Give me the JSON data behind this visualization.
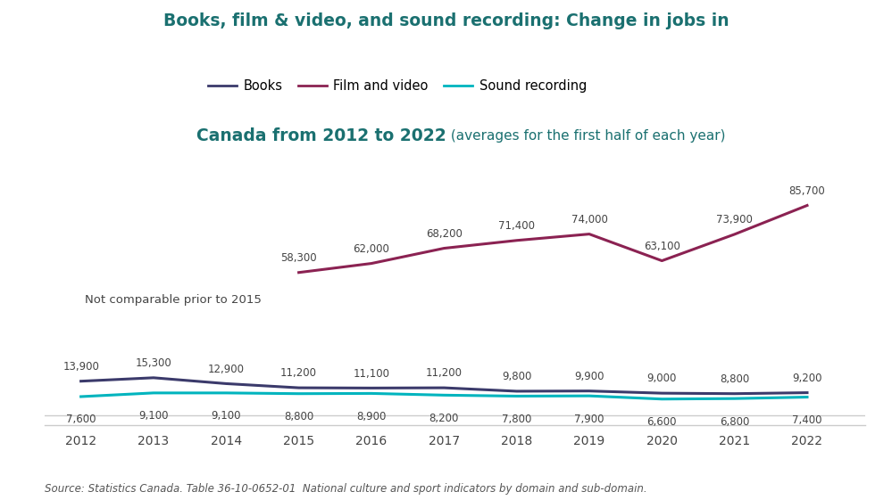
{
  "title_line1": "Books, film & video, and sound recording: Change in jobs in",
  "title_line2_bold": "Canada from 2012 to 2022",
  "title_line2_normal": " (averages for the first half of each year)",
  "source": "Source: Statistics Canada. Table 36-10-0652-01  National culture and sport indicators by domain and sub-domain.",
  "years": [
    2012,
    2013,
    2014,
    2015,
    2016,
    2017,
    2018,
    2019,
    2020,
    2021,
    2022
  ],
  "books": [
    13900,
    15300,
    12900,
    11200,
    11100,
    11200,
    9800,
    9900,
    9000,
    8800,
    9200
  ],
  "film_video": [
    null,
    null,
    null,
    58300,
    62000,
    68200,
    71400,
    74000,
    63100,
    73900,
    85700
  ],
  "sound_recording": [
    7600,
    9100,
    9100,
    8800,
    8900,
    8200,
    7800,
    7900,
    6600,
    6800,
    7400
  ],
  "books_color": "#3b3a6b",
  "film_color": "#8b2252",
  "sound_color": "#00b4be",
  "background_color": "#ffffff",
  "not_comparable_text": "Not comparable prior to 2015",
  "legend_labels": [
    "Books",
    "Film and video",
    "Sound recording"
  ],
  "title_color": "#1a7070",
  "axis_color": "#cccccc",
  "label_color": "#444444"
}
